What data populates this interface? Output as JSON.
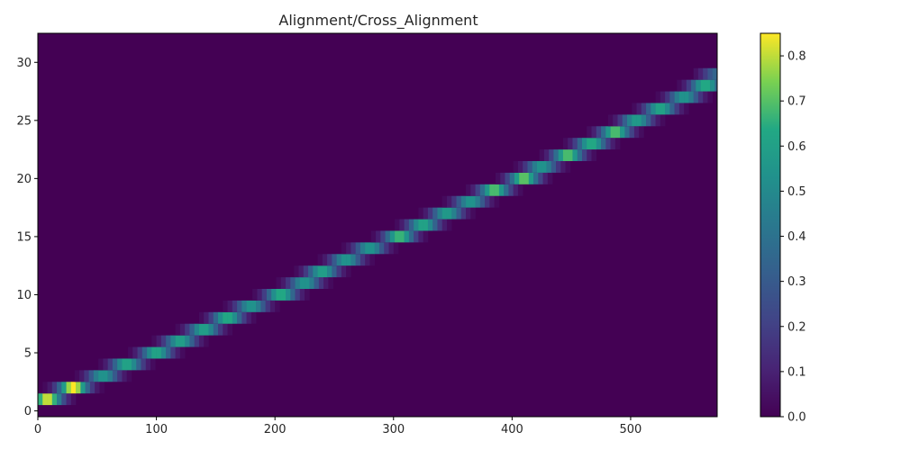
{
  "chart_data": {
    "type": "heatmap",
    "title": "Alignment/Cross_Alignment",
    "xlabel": "",
    "ylabel": "",
    "xlim": [
      0,
      573
    ],
    "ylim": [
      -0.5,
      32.5
    ],
    "x_ticks": [
      0,
      100,
      200,
      300,
      400,
      500
    ],
    "y_ticks": [
      0,
      5,
      10,
      15,
      20,
      25,
      30
    ],
    "x_tick_labels": [
      "0",
      "100",
      "200",
      "300",
      "400",
      "500"
    ],
    "y_tick_labels": [
      "0",
      "5",
      "10",
      "15",
      "20",
      "25",
      "30"
    ],
    "colormap": "viridis",
    "colorbar": {
      "range": [
        0.0,
        0.85
      ],
      "ticks": [
        0.0,
        0.1,
        0.2,
        0.3,
        0.4,
        0.5,
        0.6,
        0.7,
        0.8
      ],
      "tick_labels": [
        "0.0",
        "0.1",
        "0.2",
        "0.3",
        "0.4",
        "0.5",
        "0.6",
        "0.7",
        "0.8"
      ]
    },
    "background_value": 0.0,
    "rows": 33,
    "alignment_path": [
      {
        "row": 1,
        "center_x": 8,
        "peak": 0.82
      },
      {
        "row": 2,
        "center_x": 30,
        "peak": 0.85
      },
      {
        "row": 3,
        "center_x": 55,
        "peak": 0.55
      },
      {
        "row": 4,
        "center_x": 75,
        "peak": 0.62
      },
      {
        "row": 5,
        "center_x": 100,
        "peak": 0.62
      },
      {
        "row": 6,
        "center_x": 120,
        "peak": 0.6
      },
      {
        "row": 7,
        "center_x": 140,
        "peak": 0.6
      },
      {
        "row": 8,
        "center_x": 160,
        "peak": 0.65
      },
      {
        "row": 9,
        "center_x": 180,
        "peak": 0.55
      },
      {
        "row": 10,
        "center_x": 205,
        "peak": 0.65
      },
      {
        "row": 11,
        "center_x": 225,
        "peak": 0.55
      },
      {
        "row": 12,
        "center_x": 240,
        "peak": 0.6
      },
      {
        "row": 13,
        "center_x": 260,
        "peak": 0.55
      },
      {
        "row": 14,
        "center_x": 280,
        "peak": 0.55
      },
      {
        "row": 15,
        "center_x": 305,
        "peak": 0.68
      },
      {
        "row": 16,
        "center_x": 325,
        "peak": 0.62
      },
      {
        "row": 17,
        "center_x": 345,
        "peak": 0.58
      },
      {
        "row": 18,
        "center_x": 365,
        "peak": 0.55
      },
      {
        "row": 19,
        "center_x": 385,
        "peak": 0.7
      },
      {
        "row": 20,
        "center_x": 410,
        "peak": 0.72
      },
      {
        "row": 21,
        "center_x": 425,
        "peak": 0.55
      },
      {
        "row": 22,
        "center_x": 447,
        "peak": 0.7
      },
      {
        "row": 23,
        "center_x": 467,
        "peak": 0.65
      },
      {
        "row": 24,
        "center_x": 487,
        "peak": 0.7
      },
      {
        "row": 25,
        "center_x": 505,
        "peak": 0.58
      },
      {
        "row": 26,
        "center_x": 525,
        "peak": 0.62
      },
      {
        "row": 27,
        "center_x": 545,
        "peak": 0.55
      },
      {
        "row": 28,
        "center_x": 563,
        "peak": 0.65
      },
      {
        "row": 29,
        "center_x": 573,
        "peak": 0.35
      }
    ]
  }
}
